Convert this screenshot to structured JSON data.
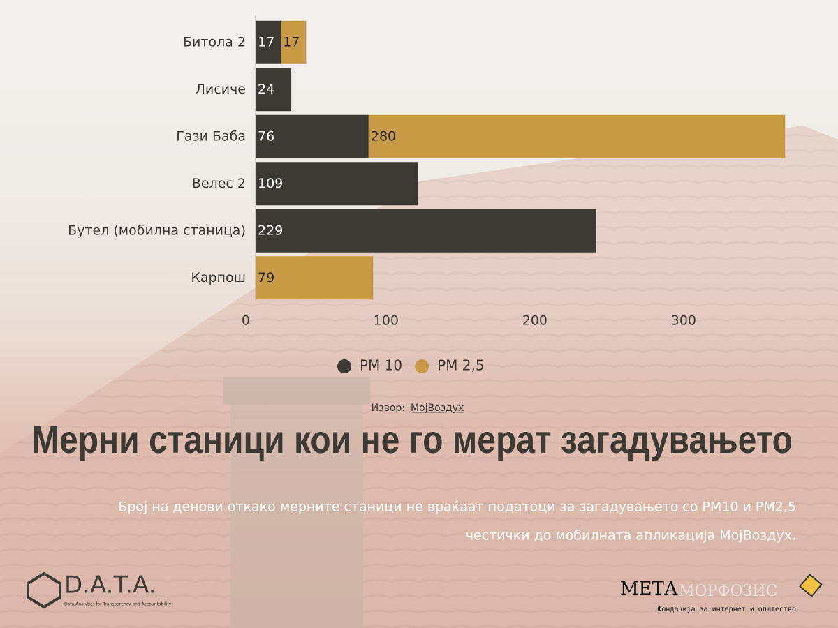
{
  "chart_data": {
    "type": "stacked_barh",
    "categories": [
      "Битола 2",
      "Лисиче",
      "Гази Баба",
      "Велес 2",
      "Бутел (мобилна станица)",
      "Карпош"
    ],
    "series": [
      {
        "name": "PM 10",
        "color": "#3d3a35",
        "label_color": "#ffffff",
        "values": [
          17,
          24,
          76,
          109,
          229,
          null
        ]
      },
      {
        "name": "PM 2,5",
        "color": "#c99a45",
        "label_color": "#2a2722",
        "values": [
          17,
          null,
          280,
          null,
          null,
          79
        ]
      }
    ],
    "xlim": [
      0,
      360
    ],
    "xticks": [
      0,
      100,
      200,
      300
    ],
    "legend": "bottom"
  },
  "source": {
    "label": "Извор:",
    "link": "МојВоздух"
  },
  "title": "Мерни станици кои не го мерат загадувањето",
  "subtitle_lines": [
    "Број на денови откако мерните станици не враќаат податоци за загадувањето со PM10 и PM2,5",
    "честички до мобилната апликација МојВоздух."
  ],
  "logos": {
    "data": {
      "name": "D.A.T.A.",
      "tagline": "Data Analytics for Transparency and Accountability"
    },
    "meta": {
      "part1": "МЕТА",
      "part2": "МОРФОЗИС",
      "tagline": "Фондација за интернет и општество"
    }
  }
}
